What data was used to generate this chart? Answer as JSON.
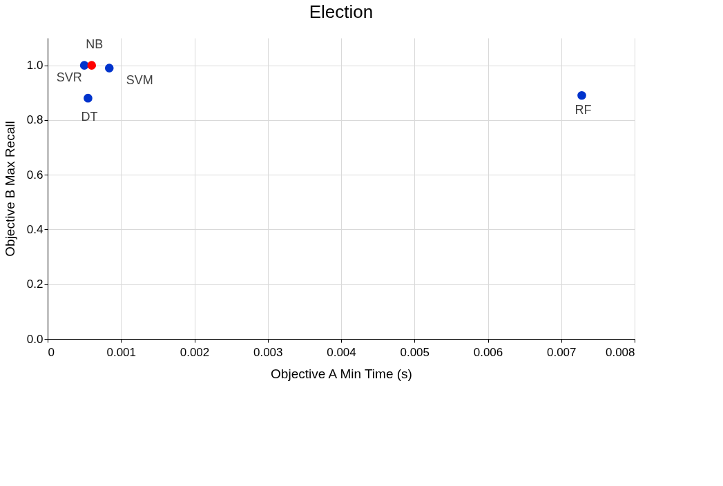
{
  "chart_data": {
    "type": "scatter",
    "title": "Election",
    "xlabel": "Objective A Min Time (s)",
    "ylabel": "Objective B Max Recall",
    "series": [
      {
        "name": "SVR",
        "color": "#0033cc",
        "x": [
          0.0005
        ],
        "values": [
          1.0
        ]
      },
      {
        "name": "NB",
        "color": "#ff0000",
        "x": [
          0.0006
        ],
        "values": [
          1.0
        ]
      },
      {
        "name": "SVM",
        "color": "#0033cc",
        "x": [
          0.00084
        ],
        "values": [
          0.99
        ]
      },
      {
        "name": "DT",
        "color": "#0033cc",
        "x": [
          0.00055
        ],
        "values": [
          0.88
        ]
      },
      {
        "name": "RF",
        "color": "#0033cc",
        "x": [
          0.00728
        ],
        "values": [
          0.89
        ]
      }
    ],
    "xlim": [
      0,
      0.008
    ],
    "xticks": [
      {
        "value": 0,
        "label": "0"
      },
      0.001,
      0.002,
      0.003,
      0.004,
      0.005,
      0.006,
      0.007,
      0.008
    ],
    "ylim": [
      0,
      1.1
    ],
    "yticks": [
      {
        "value": 0,
        "label": "0.0"
      },
      0.2,
      0.4,
      0.6,
      0.8,
      {
        "value": 1,
        "label": "1.0"
      }
    ],
    "grid": true,
    "marker": "circle"
  }
}
